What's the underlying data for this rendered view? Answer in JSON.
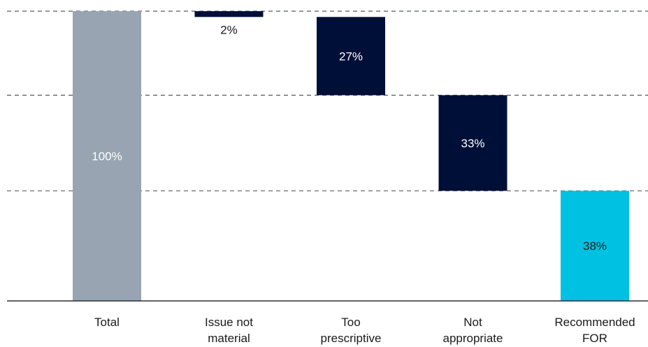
{
  "chart_data": {
    "type": "bar",
    "subtype": "waterfall",
    "categories": [
      "Total",
      "Issue not material",
      "Too prescriptive",
      "Not appropriate",
      "Recommended FOR"
    ],
    "category_lines": [
      [
        "Total"
      ],
      [
        "Issue not",
        "material"
      ],
      [
        "Too",
        "prescriptive"
      ],
      [
        "Not",
        "appropriate"
      ],
      [
        "Recommended",
        "FOR"
      ]
    ],
    "values": [
      100,
      2,
      27,
      33,
      38
    ],
    "data_labels": [
      "100%",
      "2%",
      "27%",
      "33%",
      "38%"
    ],
    "waterfall": [
      {
        "base": 0,
        "top": 100
      },
      {
        "base": 98,
        "top": 100
      },
      {
        "base": 71,
        "top": 98
      },
      {
        "base": 38,
        "top": 71
      },
      {
        "base": 0,
        "top": 38
      }
    ],
    "ylim": [
      0,
      100
    ],
    "gridlines": [
      38,
      71,
      100
    ],
    "grid_style": "dashed",
    "title": "",
    "xlabel": "",
    "ylabel": "",
    "colors": {
      "total": "#98a4b1",
      "decrease": "#000f37",
      "result": "#00c1e2",
      "grid": "#555b63",
      "axis": "#2b2f36",
      "label_light": "#ffffff",
      "label_dark": "#1a1a1a"
    },
    "bar_roles": [
      "total",
      "decrease",
      "decrease",
      "decrease",
      "result"
    ]
  }
}
